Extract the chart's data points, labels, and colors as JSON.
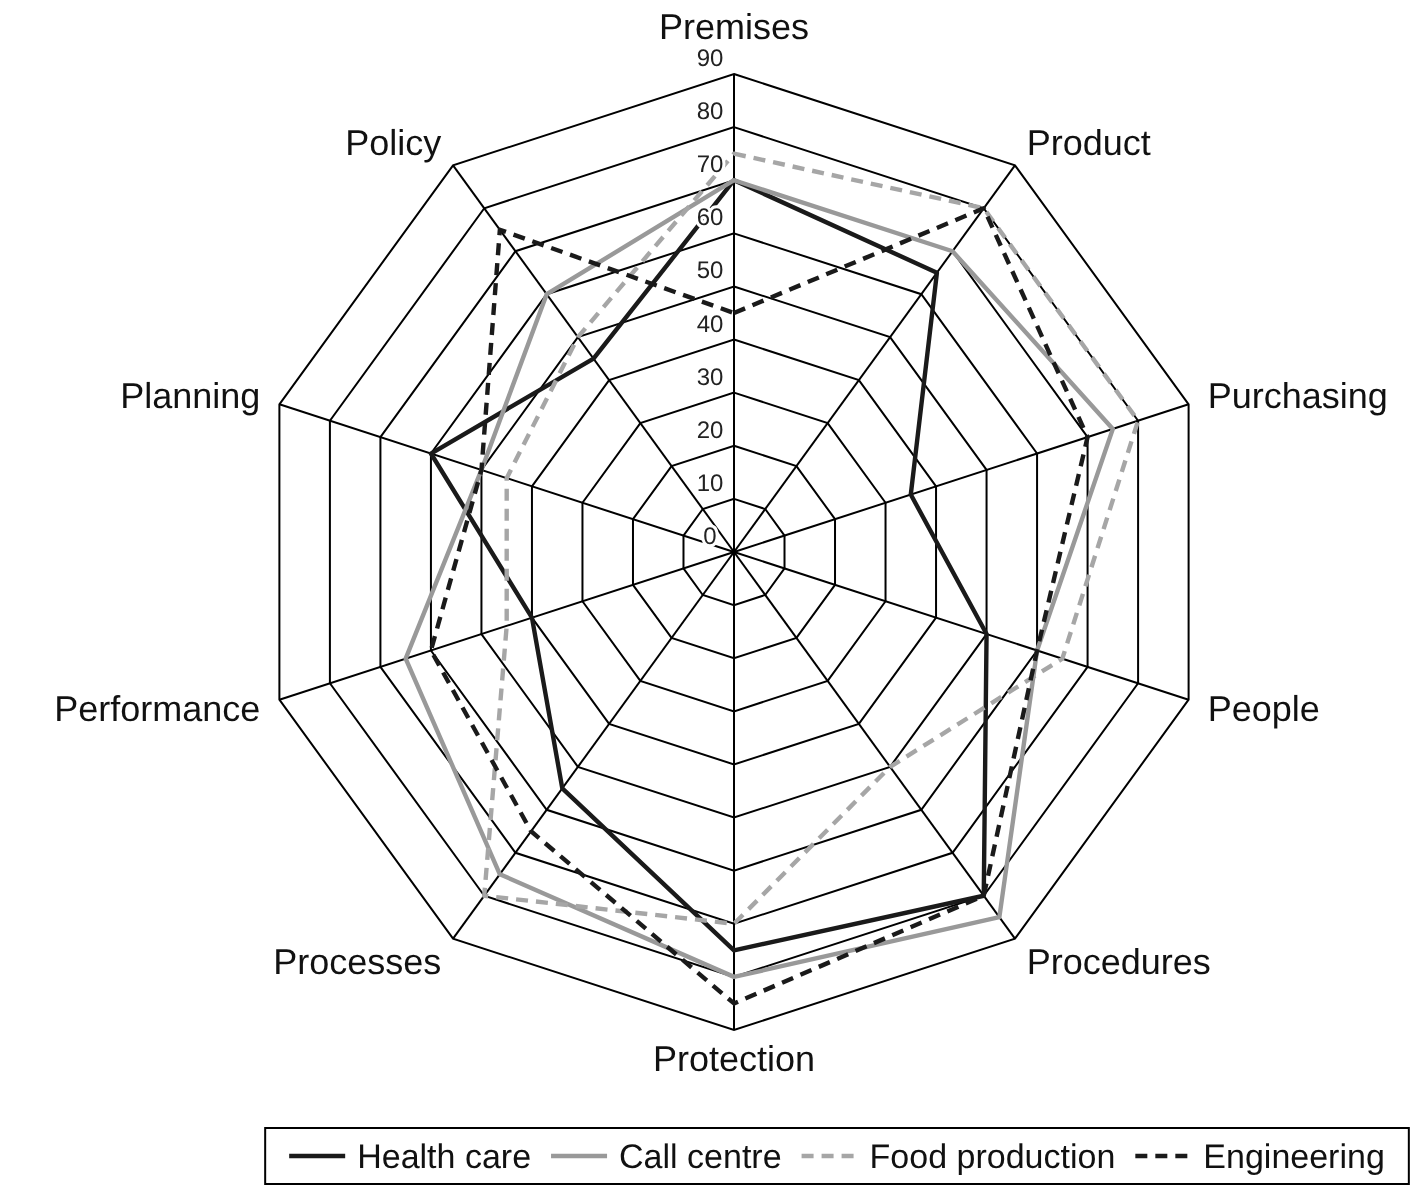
{
  "chart_data": {
    "type": "radar",
    "categories": [
      "Premises",
      "Product",
      "Purchasing",
      "People",
      "Procedures",
      "Protection",
      "Processes",
      "Performance",
      "Planning",
      "Policy"
    ],
    "ylim": [
      0,
      90
    ],
    "yticks": [
      0,
      10,
      20,
      30,
      40,
      50,
      60,
      70,
      80,
      90
    ],
    "grid": true,
    "legend": "bottom",
    "marker": "none",
    "series": [
      {
        "name": "Health care",
        "color": "#1a1a1a",
        "line_style": "solid",
        "values": [
          70,
          65,
          35,
          50,
          80,
          75,
          55,
          40,
          60,
          45
        ]
      },
      {
        "name": "Call centre",
        "color": "#999999",
        "line_style": "solid",
        "values": [
          70,
          70,
          75,
          60,
          85,
          80,
          75,
          65,
          50,
          60
        ]
      },
      {
        "name": "Food production",
        "color": "#a6a6a6",
        "line_style": "dashed",
        "values": [
          75,
          80,
          80,
          65,
          50,
          70,
          80,
          45,
          45,
          50
        ]
      },
      {
        "name": "Engineering",
        "color": "#1a1a1a",
        "line_style": "dashed",
        "values": [
          45,
          80,
          70,
          60,
          80,
          85,
          65,
          60,
          50,
          75
        ]
      }
    ]
  }
}
